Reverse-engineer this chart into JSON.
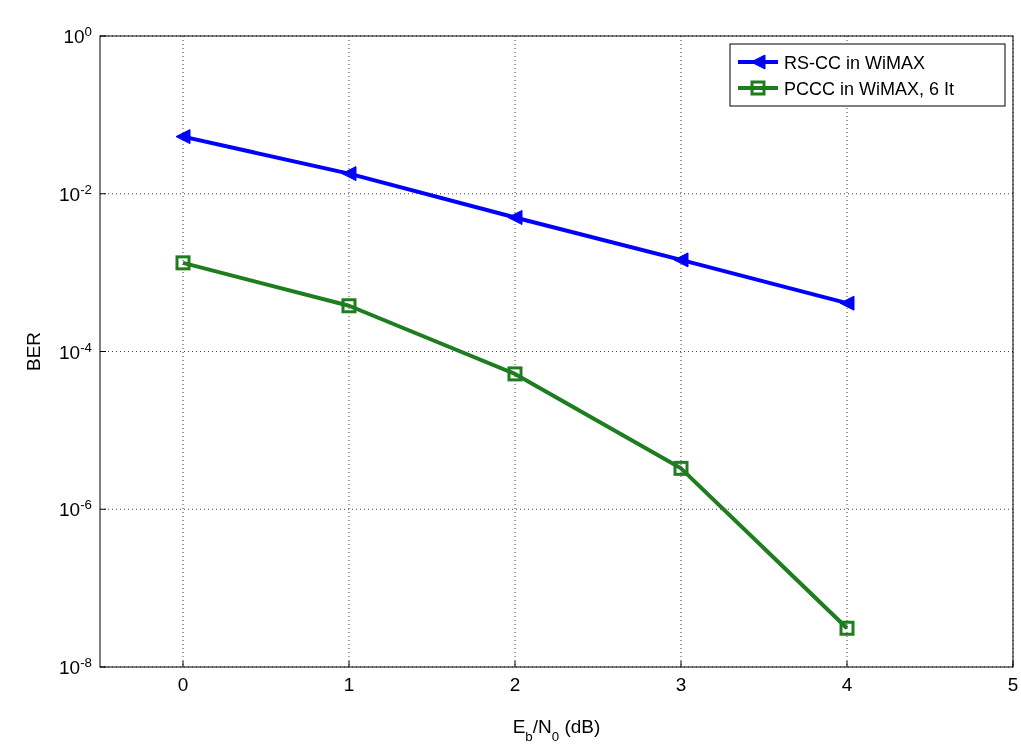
{
  "chart_data": {
    "type": "line",
    "xlabel": "E$_{b}$/N$_{0}$ (dB)",
    "ylabel": "BER",
    "log": true,
    "grid": true,
    "legend": "top right",
    "line_style": "solid",
    "xlim": [
      -0.5,
      5
    ],
    "xticks": [
      0,
      1,
      2,
      3,
      4,
      5
    ],
    "ylim": [
      1e-08,
      1
    ],
    "yticks": [
      {
        "value": 1e-08,
        "label": "10$^{-8}$"
      },
      {
        "value": 1e-06,
        "label": "10$^{-6}$"
      },
      {
        "value": 0.0001,
        "label": "10$^{-4}$"
      },
      {
        "value": 0.01,
        "label": "10$^{-2}$"
      },
      {
        "value": 1,
        "label": "10$^{0}$"
      }
    ],
    "x": [
      0,
      1,
      2,
      3,
      4
    ],
    "series": [
      {
        "name": "RS-CC in WiMAX",
        "color": "#0000ff",
        "marker": "triangle",
        "values": [
          0.053,
          0.018,
          0.005,
          0.00145,
          0.00041
        ]
      },
      {
        "name": "PCCC in WiMAX, 6 It",
        "color": "#1e7d1e",
        "marker": "square",
        "values": [
          0.00133,
          0.00038,
          5.2e-05,
          3.3e-06,
          3.1e-08
        ]
      }
    ]
  }
}
